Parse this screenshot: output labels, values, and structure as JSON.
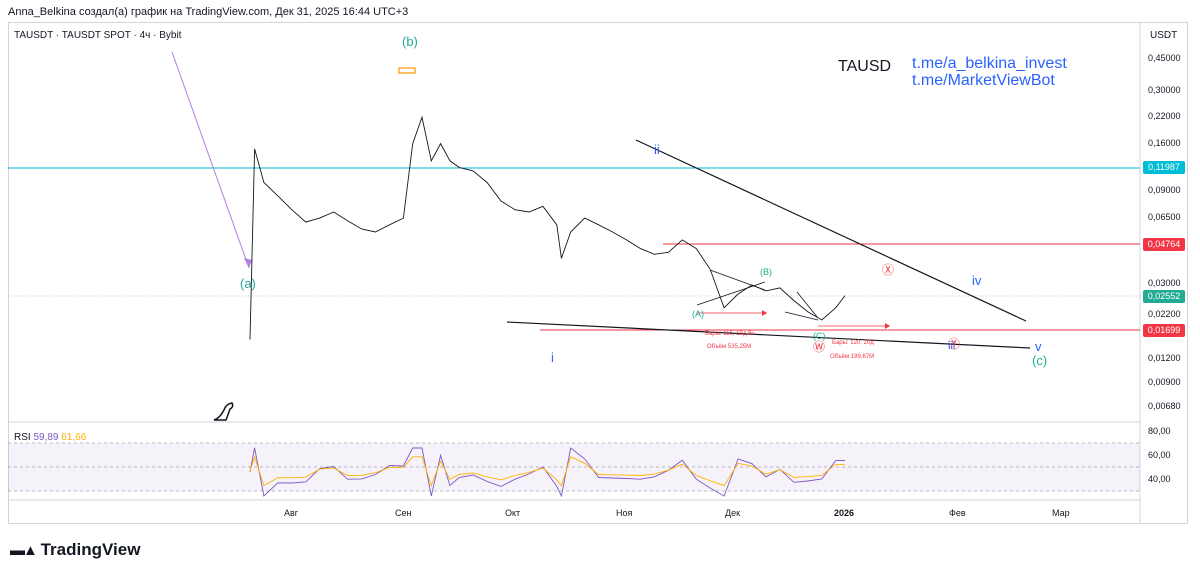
{
  "header": "Anna_Belkina создал(а) график на TradingView.com, Дек 31, 2025 16:44 UTC+3",
  "symbol_line": "TAUSDT · TAUSDT SPOT · 4ч · Bybit",
  "title_tag": "TAUSD",
  "links": [
    "t.me/a_belkina_invest",
    "t.me/MarketViewBot"
  ],
  "currency": "USDT",
  "logo_text": "TradingView",
  "rsi": {
    "label": "RSI",
    "value1": "59,89",
    "value2": "61,66",
    "levels": [
      "80,00",
      "60,00",
      "40,00"
    ]
  },
  "colors": {
    "green": "#22ab94",
    "red": "#f23645",
    "blue": "#2962ff",
    "cyan": "#00bcd4",
    "purple": "#7e57c2",
    "orange": "#ff9800"
  },
  "chart_data": {
    "type": "line",
    "y_scale": "log",
    "ylabel": "USDT",
    "price_labels": [
      "0,45000",
      "0,30000",
      "0,22000",
      "0,16000",
      "0,09000",
      "0,06500",
      "0,03000",
      "0,02200",
      "0,01200",
      "0,00900",
      "0,00680"
    ],
    "x_labels": [
      "Авг",
      "Сен",
      "Окт",
      "Ноя",
      "Дек",
      "2026",
      "Фев",
      "Мар"
    ],
    "horizontal_levels": [
      {
        "value": "0,11987",
        "color": "#00bcd4"
      },
      {
        "value": "0,04764",
        "color": "#f23645"
      },
      {
        "value": "0,02552",
        "color": "#22ab94"
      },
      {
        "value": "0,01699",
        "color": "#f23645"
      }
    ],
    "wave_labels": [
      "(a)",
      "(b)",
      "(c)",
      "i",
      "ii",
      "iii",
      "iv",
      "v",
      "(A)",
      "(B)",
      "(C)",
      "Ⓧ",
      "Ⓨ",
      "Ⓦ"
    ],
    "annotations": [
      "Бары: 116, 19д 8ч",
      "Объём 535,25M",
      "Бары: 120, 20д",
      "Объём 199,67M"
    ],
    "price_series": [
      {
        "d": 0,
        "p": 0.015
      },
      {
        "d": 1,
        "p": 0.15
      },
      {
        "d": 3,
        "p": 0.1
      },
      {
        "d": 6,
        "p": 0.085
      },
      {
        "d": 9,
        "p": 0.072
      },
      {
        "d": 12,
        "p": 0.062
      },
      {
        "d": 15,
        "p": 0.065
      },
      {
        "d": 18,
        "p": 0.07
      },
      {
        "d": 21,
        "p": 0.063
      },
      {
        "d": 24,
        "p": 0.057
      },
      {
        "d": 27,
        "p": 0.055
      },
      {
        "d": 30,
        "p": 0.06
      },
      {
        "d": 33,
        "p": 0.065
      },
      {
        "d": 35,
        "p": 0.16
      },
      {
        "d": 37,
        "p": 0.22
      },
      {
        "d": 39,
        "p": 0.13
      },
      {
        "d": 41,
        "p": 0.16
      },
      {
        "d": 43,
        "p": 0.13
      },
      {
        "d": 45,
        "p": 0.12
      },
      {
        "d": 48,
        "p": 0.115
      },
      {
        "d": 51,
        "p": 0.1
      },
      {
        "d": 54,
        "p": 0.08
      },
      {
        "d": 57,
        "p": 0.072
      },
      {
        "d": 60,
        "p": 0.07
      },
      {
        "d": 63,
        "p": 0.075
      },
      {
        "d": 66,
        "p": 0.06
      },
      {
        "d": 67,
        "p": 0.04
      },
      {
        "d": 69,
        "p": 0.055
      },
      {
        "d": 72,
        "p": 0.065
      },
      {
        "d": 75,
        "p": 0.06
      },
      {
        "d": 78,
        "p": 0.055
      },
      {
        "d": 81,
        "p": 0.05
      },
      {
        "d": 84,
        "p": 0.045
      },
      {
        "d": 87,
        "p": 0.042
      },
      {
        "d": 90,
        "p": 0.043
      },
      {
        "d": 93,
        "p": 0.05
      },
      {
        "d": 96,
        "p": 0.045
      },
      {
        "d": 99,
        "p": 0.035
      },
      {
        "d": 102,
        "p": 0.022
      },
      {
        "d": 105,
        "p": 0.026
      },
      {
        "d": 108,
        "p": 0.029
      },
      {
        "d": 111,
        "p": 0.027
      },
      {
        "d": 114,
        "p": 0.028
      },
      {
        "d": 117,
        "p": 0.024
      },
      {
        "d": 120,
        "p": 0.021
      },
      {
        "d": 123,
        "p": 0.019
      },
      {
        "d": 126,
        "p": 0.022
      },
      {
        "d": 128,
        "p": 0.0255
      }
    ]
  }
}
